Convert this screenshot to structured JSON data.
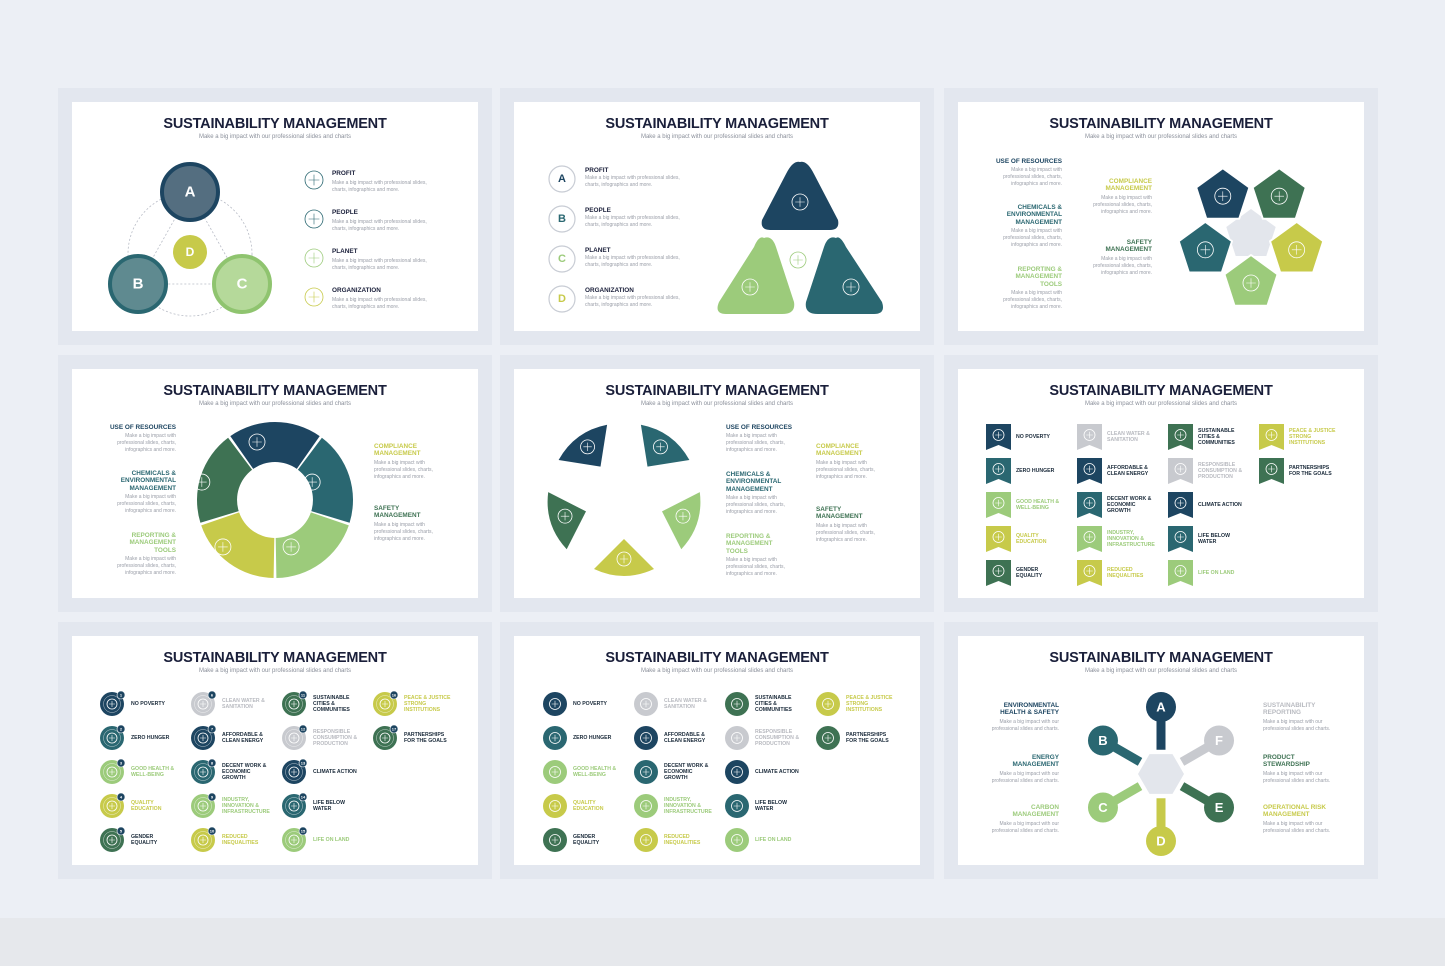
{
  "colors": {
    "navy": "#1d4561",
    "teal": "#2a6771",
    "darkgreen": "#3e7253",
    "lightgreen": "#9ccb7b",
    "lime": "#c7ca4a",
    "gray": "#c8cacf",
    "center": "#e3e6ec",
    "title": "#1a1f3a"
  },
  "common": {
    "title": "SUSTAINABILITY MANAGEMENT",
    "subtitle": "Make a big impact with our professional slides and charts",
    "desc": "Make a big impact with professional slides,\ncharts, infographics and more.",
    "desc_short": "Make a big impact with\nprofessional slides, charts,\ninfographics and more.",
    "desc_our": "Make a big impact with our\nprofessional slides and charts."
  },
  "slide1": {
    "letters": [
      "A",
      "B",
      "C",
      "D"
    ],
    "items": [
      {
        "label": "PROFIT",
        "icon": "target-person-icon"
      },
      {
        "label": "PEOPLE",
        "icon": "people-network-icon"
      },
      {
        "label": "PLANET",
        "icon": "globe-icon"
      },
      {
        "label": "ORGANIZATION",
        "icon": "compass-icon"
      }
    ]
  },
  "slide2": {
    "letters": [
      "A",
      "B",
      "C",
      "D"
    ],
    "items": [
      "PROFIT",
      "PEOPLE",
      "PLANET",
      "ORGANIZATION"
    ]
  },
  "topics": [
    {
      "label": "USE OF RESOURCES",
      "color": "navy"
    },
    {
      "label": "CHEMICALS &\nENVIRONMENTAL\nMANAGEMENT",
      "color": "teal"
    },
    {
      "label": "REPORTING &\nMANAGEMENT\nTOOLS",
      "color": "lightgreen"
    },
    {
      "label": "COMPLIANCE\nMANAGEMENT",
      "color": "lime"
    },
    {
      "label": "SAFETY\nMANAGEMENT",
      "color": "darkgreen"
    }
  ],
  "sdgs": [
    {
      "n": "1",
      "label": "NO POVERTY"
    },
    {
      "n": "2",
      "label": "ZERO HUNGER"
    },
    {
      "n": "3",
      "label": "GOOD HEALTH &\nWELL-BEING"
    },
    {
      "n": "4",
      "label": "QUALITY\nEDUCATION"
    },
    {
      "n": "5",
      "label": "GENDER\nEQUALITY"
    },
    {
      "n": "6",
      "label": "CLEAN WATER &\nSANITATION"
    },
    {
      "n": "7",
      "label": "AFFORDABLE &\nCLEAN ENERGY"
    },
    {
      "n": "8",
      "label": "DECENT WORK &\nECONOMIC\nGROWTH"
    },
    {
      "n": "9",
      "label": "INDUSTRY,\nINNOVATION &\nINFRASTRUCTURE"
    },
    {
      "n": "10",
      "label": "REDUCED\nINEQUALITIES"
    },
    {
      "n": "11",
      "label": "SUSTAINABLE\nCITIES &\nCOMMUNITIES"
    },
    {
      "n": "12",
      "label": "RESPONSIBLE\nCONSUMPTION &\nPRODUCTION"
    },
    {
      "n": "13",
      "label": "CLIMATE ACTION"
    },
    {
      "n": "14",
      "label": "LIFE BELOW\nWATER"
    },
    {
      "n": "15",
      "label": "LIFE ON LAND"
    },
    {
      "n": "16",
      "label": "PEACE & JUSTICE\nSTRONG\nINSTITUTIONS"
    },
    {
      "n": "17",
      "label": "PARTNERSHIPS\nFOR THE GOALS"
    }
  ],
  "sdg_color_cycle": [
    "navy",
    "teal",
    "lightgreen",
    "lime",
    "darkgreen",
    "gray"
  ],
  "slide9": {
    "nodes": [
      {
        "letter": "A",
        "label": "ENVIRONMENTAL\nHEALTH & SAFETY",
        "color": "navy"
      },
      {
        "letter": "B",
        "label": "ENERGY\nMANAGEMENT",
        "color": "teal"
      },
      {
        "letter": "C",
        "label": "CARBON\nMANAGEMENT",
        "color": "lightgreen"
      },
      {
        "letter": "D",
        "label": "",
        "color": "lime"
      },
      {
        "letter": "E",
        "label": "PRODUCT\nSTEWARDSHIP",
        "color": "darkgreen"
      },
      {
        "letter": "F",
        "label": "SUSTAINABILITY\nREPORTING",
        "color": "gray"
      }
    ],
    "right_labels": [
      {
        "label": "SUSTAINABILITY\nREPORTING",
        "color": "gray"
      },
      {
        "label": "PRODUCT\nSTEWARDSHIP",
        "color": "darkgreen"
      },
      {
        "label": "OPERATIONAL RISK\nMANAGEMENT",
        "color": "lime"
      }
    ]
  }
}
